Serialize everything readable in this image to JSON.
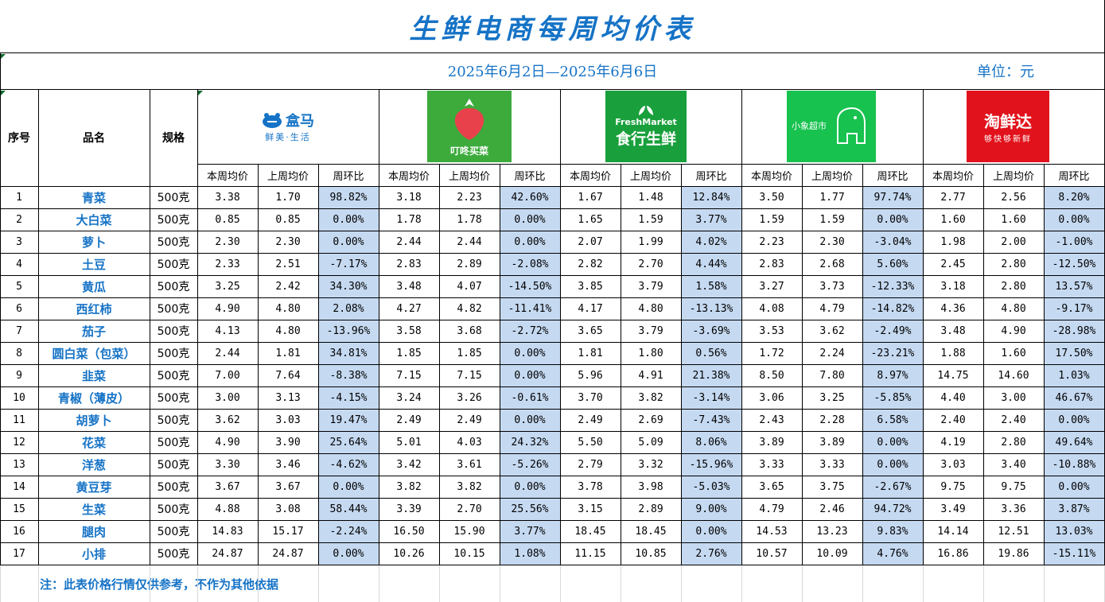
{
  "title": "生鲜电商每周均价表",
  "date_range": "2025年6月2日—2025年6月6日",
  "unit_label": "单位：元",
  "headers": {
    "seq": "序号",
    "name": "品名",
    "spec": "规格"
  },
  "sub_headers": [
    "本周均价",
    "上周均价",
    "周环比"
  ],
  "platforms": [
    {
      "name": "盒马",
      "tagline": "鲜美·生活",
      "colors": {
        "bg": "#ffffff",
        "text": "#1473c6"
      }
    },
    {
      "name": "叮咚买菜",
      "tagline": "",
      "colors": {
        "bg": "#3cab3c",
        "text": "#ffffff",
        "accent": "#e8414b"
      }
    },
    {
      "name": "FreshMarket",
      "tagline": "食行生鲜",
      "colors": {
        "bg": "#19a03c",
        "text": "#ffffff"
      }
    },
    {
      "name": "小象超市",
      "tagline": "",
      "colors": {
        "bg": "#17c24f",
        "text": "#ffffff"
      }
    },
    {
      "name": "淘鲜达",
      "tagline": "够快够新鲜",
      "colors": {
        "bg": "#e1121b",
        "text": "#ffffff"
      }
    }
  ],
  "rows": [
    {
      "seq": "1",
      "name": "青菜",
      "spec": "500克",
      "values": [
        [
          "3.38",
          "1.70",
          "98.82%"
        ],
        [
          "3.18",
          "2.23",
          "42.60%"
        ],
        [
          "1.67",
          "1.48",
          "12.84%"
        ],
        [
          "3.50",
          "1.77",
          "97.74%"
        ],
        [
          "2.77",
          "2.56",
          "8.20%"
        ]
      ]
    },
    {
      "seq": "2",
      "name": "大白菜",
      "spec": "500克",
      "values": [
        [
          "0.85",
          "0.85",
          "0.00%"
        ],
        [
          "1.78",
          "1.78",
          "0.00%"
        ],
        [
          "1.65",
          "1.59",
          "3.77%"
        ],
        [
          "1.59",
          "1.59",
          "0.00%"
        ],
        [
          "1.60",
          "1.60",
          "0.00%"
        ]
      ]
    },
    {
      "seq": "3",
      "name": "萝卜",
      "spec": "500克",
      "values": [
        [
          "2.30",
          "2.30",
          "0.00%"
        ],
        [
          "2.44",
          "2.44",
          "0.00%"
        ],
        [
          "2.07",
          "1.99",
          "4.02%"
        ],
        [
          "2.23",
          "2.30",
          "-3.04%"
        ],
        [
          "1.98",
          "2.00",
          "-1.00%"
        ]
      ]
    },
    {
      "seq": "4",
      "name": "土豆",
      "spec": "500克",
      "values": [
        [
          "2.33",
          "2.51",
          "-7.17%"
        ],
        [
          "2.83",
          "2.89",
          "-2.08%"
        ],
        [
          "2.82",
          "2.70",
          "4.44%"
        ],
        [
          "2.83",
          "2.68",
          "5.60%"
        ],
        [
          "2.45",
          "2.80",
          "-12.50%"
        ]
      ]
    },
    {
      "seq": "5",
      "name": "黄瓜",
      "spec": "500克",
      "values": [
        [
          "3.25",
          "2.42",
          "34.30%"
        ],
        [
          "3.48",
          "4.07",
          "-14.50%"
        ],
        [
          "3.85",
          "3.79",
          "1.58%"
        ],
        [
          "3.27",
          "3.73",
          "-12.33%"
        ],
        [
          "3.18",
          "2.80",
          "13.57%"
        ]
      ]
    },
    {
      "seq": "6",
      "name": "西红柿",
      "spec": "500克",
      "values": [
        [
          "4.90",
          "4.80",
          "2.08%"
        ],
        [
          "4.27",
          "4.82",
          "-11.41%"
        ],
        [
          "4.17",
          "4.80",
          "-13.13%"
        ],
        [
          "4.08",
          "4.79",
          "-14.82%"
        ],
        [
          "4.36",
          "4.80",
          "-9.17%"
        ]
      ]
    },
    {
      "seq": "7",
      "name": "茄子",
      "spec": "500克",
      "values": [
        [
          "4.13",
          "4.80",
          "-13.96%"
        ],
        [
          "3.58",
          "3.68",
          "-2.72%"
        ],
        [
          "3.65",
          "3.79",
          "-3.69%"
        ],
        [
          "3.53",
          "3.62",
          "-2.49%"
        ],
        [
          "3.48",
          "4.90",
          "-28.98%"
        ]
      ]
    },
    {
      "seq": "8",
      "name": "圆白菜（包菜）",
      "spec": "500克",
      "values": [
        [
          "2.44",
          "1.81",
          "34.81%"
        ],
        [
          "1.85",
          "1.85",
          "0.00%"
        ],
        [
          "1.81",
          "1.80",
          "0.56%"
        ],
        [
          "1.72",
          "2.24",
          "-23.21%"
        ],
        [
          "1.88",
          "1.60",
          "17.50%"
        ]
      ]
    },
    {
      "seq": "9",
      "name": "韭菜",
      "spec": "500克",
      "values": [
        [
          "7.00",
          "7.64",
          "-8.38%"
        ],
        [
          "7.15",
          "7.15",
          "0.00%"
        ],
        [
          "5.96",
          "4.91",
          "21.38%"
        ],
        [
          "8.50",
          "7.80",
          "8.97%"
        ],
        [
          "14.75",
          "14.60",
          "1.03%"
        ]
      ]
    },
    {
      "seq": "10",
      "name": "青椒（薄皮）",
      "spec": "500克",
      "values": [
        [
          "3.00",
          "3.13",
          "-4.15%"
        ],
        [
          "3.24",
          "3.26",
          "-0.61%"
        ],
        [
          "3.70",
          "3.82",
          "-3.14%"
        ],
        [
          "3.06",
          "3.25",
          "-5.85%"
        ],
        [
          "4.40",
          "3.00",
          "46.67%"
        ]
      ]
    },
    {
      "seq": "11",
      "name": "胡萝卜",
      "spec": "500克",
      "values": [
        [
          "3.62",
          "3.03",
          "19.47%"
        ],
        [
          "2.49",
          "2.49",
          "0.00%"
        ],
        [
          "2.49",
          "2.69",
          "-7.43%"
        ],
        [
          "2.43",
          "2.28",
          "6.58%"
        ],
        [
          "2.40",
          "2.40",
          "0.00%"
        ]
      ]
    },
    {
      "seq": "12",
      "name": "花菜",
      "spec": "500克",
      "values": [
        [
          "4.90",
          "3.90",
          "25.64%"
        ],
        [
          "5.01",
          "4.03",
          "24.32%"
        ],
        [
          "5.50",
          "5.09",
          "8.06%"
        ],
        [
          "3.89",
          "3.89",
          "0.00%"
        ],
        [
          "4.19",
          "2.80",
          "49.64%"
        ]
      ]
    },
    {
      "seq": "13",
      "name": "洋葱",
      "spec": "500克",
      "values": [
        [
          "3.30",
          "3.46",
          "-4.62%"
        ],
        [
          "3.42",
          "3.61",
          "-5.26%"
        ],
        [
          "2.79",
          "3.32",
          "-15.96%"
        ],
        [
          "3.33",
          "3.33",
          "0.00%"
        ],
        [
          "3.03",
          "3.40",
          "-10.88%"
        ]
      ]
    },
    {
      "seq": "14",
      "name": "黄豆芽",
      "spec": "500克",
      "values": [
        [
          "3.67",
          "3.67",
          "0.00%"
        ],
        [
          "3.82",
          "3.82",
          "0.00%"
        ],
        [
          "3.78",
          "3.98",
          "-5.03%"
        ],
        [
          "3.65",
          "3.75",
          "-2.67%"
        ],
        [
          "9.75",
          "9.75",
          "0.00%"
        ]
      ]
    },
    {
      "seq": "15",
      "name": "生菜",
      "spec": "500克",
      "values": [
        [
          "4.88",
          "3.08",
          "58.44%"
        ],
        [
          "3.39",
          "2.70",
          "25.56%"
        ],
        [
          "3.15",
          "2.89",
          "9.00%"
        ],
        [
          "4.79",
          "2.46",
          "94.72%"
        ],
        [
          "3.49",
          "3.36",
          "3.87%"
        ]
      ]
    },
    {
      "seq": "16",
      "name": "腿肉",
      "spec": "500克",
      "values": [
        [
          "14.83",
          "15.17",
          "-2.24%"
        ],
        [
          "16.50",
          "15.90",
          "3.77%"
        ],
        [
          "18.45",
          "18.45",
          "0.00%"
        ],
        [
          "14.53",
          "13.23",
          "9.83%"
        ],
        [
          "14.14",
          "12.51",
          "13.03%"
        ]
      ]
    },
    {
      "seq": "17",
      "name": "小排",
      "spec": "500克",
      "values": [
        [
          "24.87",
          "24.87",
          "0.00%"
        ],
        [
          "10.26",
          "10.15",
          "1.08%"
        ],
        [
          "11.15",
          "10.85",
          "2.76%"
        ],
        [
          "10.57",
          "10.09",
          "4.76%"
        ],
        [
          "16.86",
          "19.86",
          "-15.11%"
        ]
      ]
    }
  ],
  "note": "注：此表价格行情仅供参考，不作为其他依据",
  "colors": {
    "title": "#1673c6",
    "ratio_fill": "#c5d9f1",
    "grid": "#000000"
  }
}
